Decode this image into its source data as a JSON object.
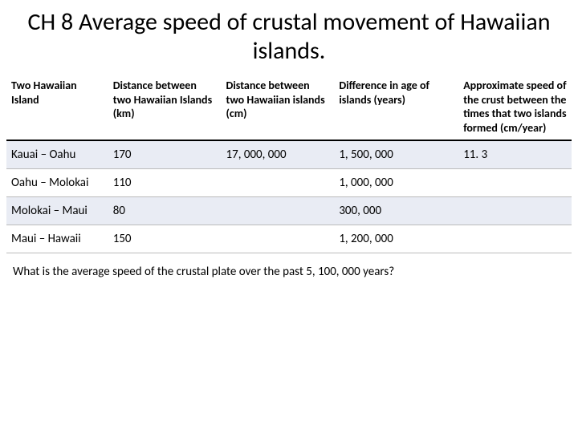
{
  "title": "CH 8 Average speed of crustal movement of Hawaiian islands.",
  "columns": {
    "c0": "Two Hawaiian Island",
    "c1": "Distance between two Hawaiian Islands (km)",
    "c2": "Distance between two Hawaiian islands (cm)",
    "c3": "Difference in age of islands (years)",
    "c4": "Approximate speed of the crust between the times that two islands formed (cm/year)"
  },
  "rows": [
    {
      "c0": "Kauai – Oahu",
      "c1": "170",
      "c2": "17, 000, 000",
      "c3": "1, 500, 000",
      "c4": "11. 3"
    },
    {
      "c0": "Oahu – Molokai",
      "c1": "110",
      "c2": "",
      "c3": "1, 000, 000",
      "c4": ""
    },
    {
      "c0": "Molokai – Maui",
      "c1": "80",
      "c2": "",
      "c3": "300, 000",
      "c4": ""
    },
    {
      "c0": "Maui – Hawaii",
      "c1": "150",
      "c2": "",
      "c3": "1, 200, 000",
      "c4": ""
    }
  ],
  "question": "What is the average speed of the crustal plate over the past 5, 100, 000 years?"
}
